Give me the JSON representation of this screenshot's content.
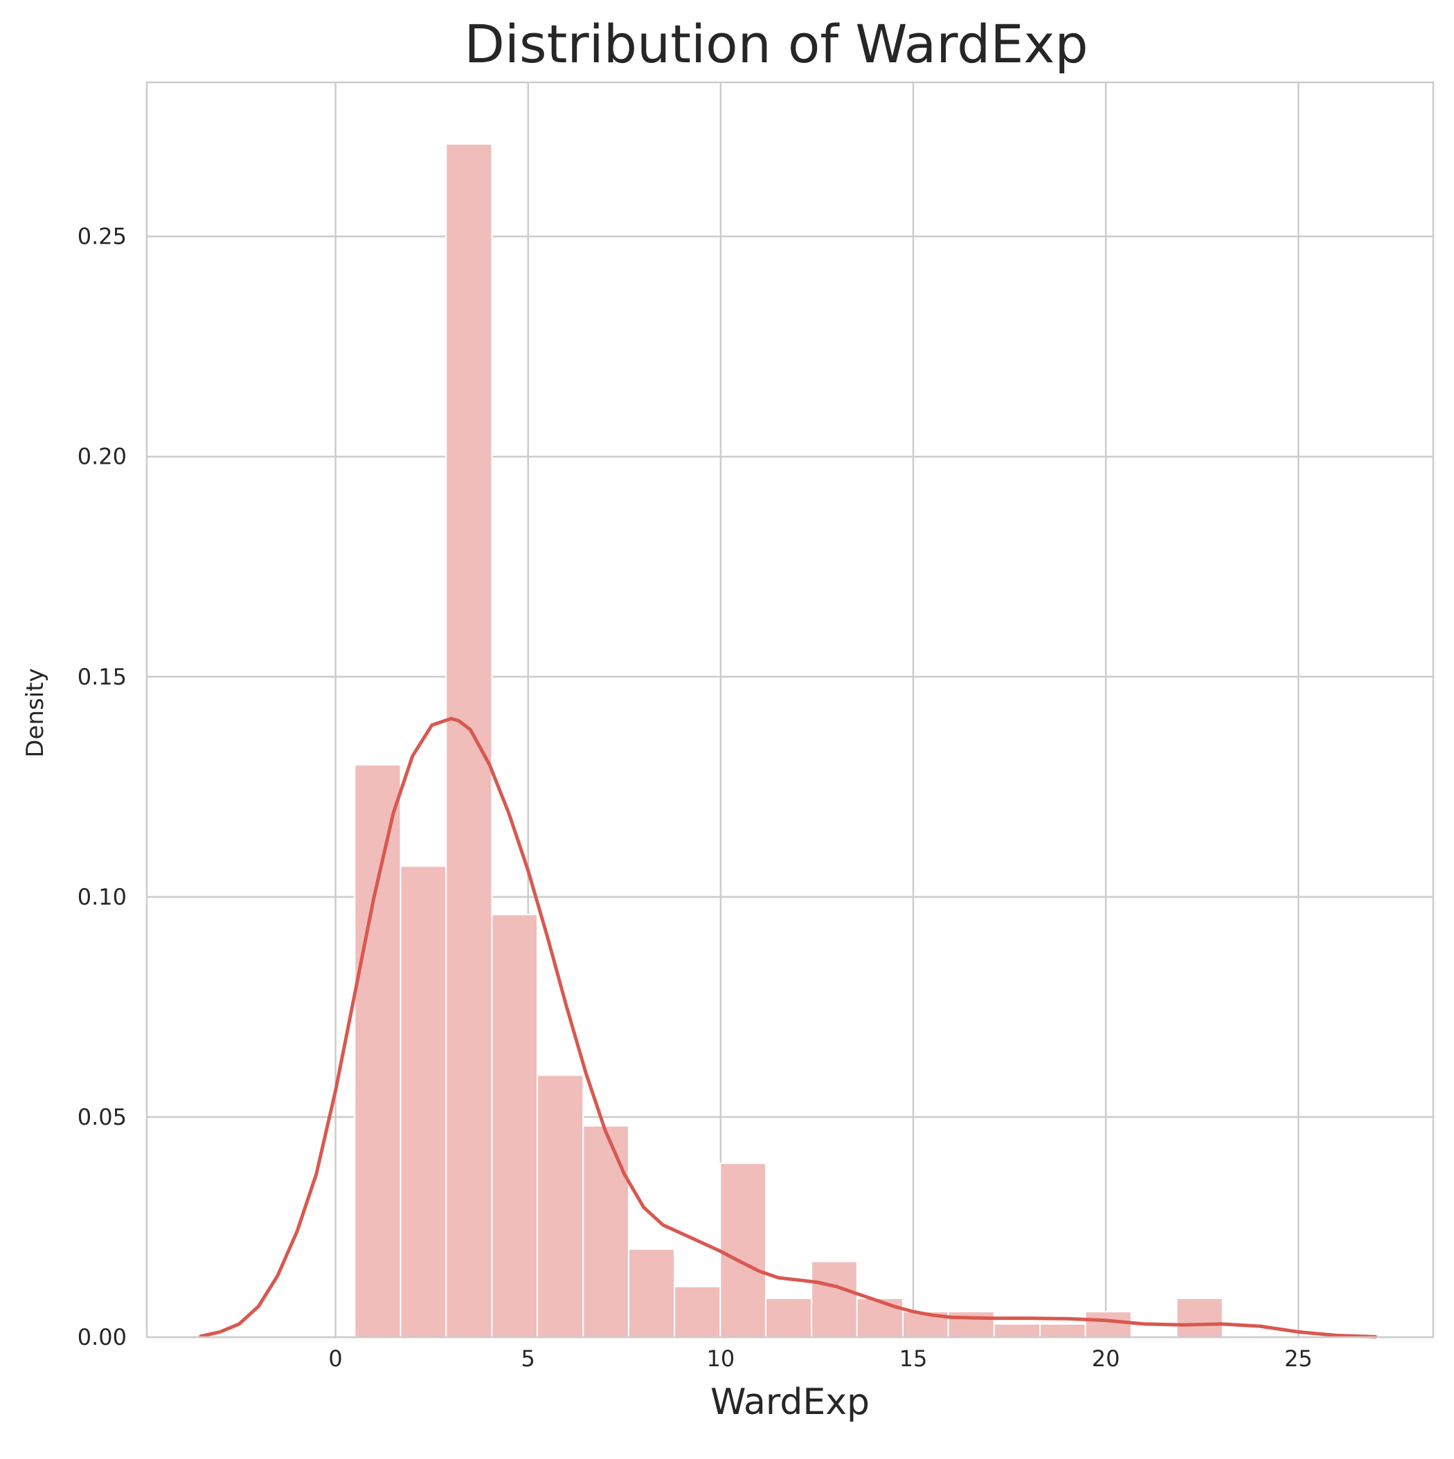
{
  "chart_data": {
    "type": "bar",
    "title": "Distribution of WardExp",
    "xlabel": "WardExp",
    "ylabel": "Density",
    "xlim": [
      -4.9,
      28.5
    ],
    "ylim": [
      0,
      0.285
    ],
    "grid": true,
    "x_ticks": [
      0,
      5,
      10,
      15,
      20,
      25
    ],
    "y_ticks": [
      0.0,
      0.05,
      0.1,
      0.15,
      0.2,
      0.25
    ],
    "x_tick_labels": [
      "0",
      "5",
      "10",
      "15",
      "20",
      "25"
    ],
    "y_tick_labels": [
      "0.00",
      "0.05",
      "0.10",
      "0.15",
      "0.20",
      "0.25"
    ],
    "bin_edges": [
      0.5,
      1.69,
      2.87,
      4.06,
      5.24,
      6.43,
      7.61,
      8.8,
      9.99,
      11.17,
      12.36,
      13.54,
      14.73,
      15.91,
      17.1,
      18.29,
      19.47,
      20.66,
      21.84,
      23.03
    ],
    "densities": [
      0.13,
      0.107,
      0.271,
      0.096,
      0.0595,
      0.048,
      0.02,
      0.0115,
      0.0395,
      0.0088,
      0.0172,
      0.0088,
      0.0058,
      0.0058,
      0.003,
      0.003,
      0.0058,
      0.0,
      0.0088
    ],
    "kde": {
      "x": [
        -3.5,
        -3,
        -2.5,
        -2,
        -1.5,
        -1,
        -0.5,
        0,
        0.5,
        1,
        1.5,
        2,
        2.5,
        3,
        3.2,
        3.5,
        4,
        4.5,
        5,
        5.5,
        6,
        6.5,
        7,
        7.5,
        8,
        8.5,
        9,
        9.5,
        10,
        10.5,
        11,
        11.5,
        12,
        12.5,
        13,
        13.5,
        14,
        14.5,
        15,
        15.5,
        16,
        17,
        18,
        19,
        20,
        21,
        22,
        23,
        24,
        25,
        26,
        27
      ],
      "y": [
        0.0002,
        0.0012,
        0.003,
        0.007,
        0.014,
        0.024,
        0.037,
        0.056,
        0.078,
        0.1,
        0.119,
        0.132,
        0.139,
        0.1405,
        0.14,
        0.138,
        0.13,
        0.119,
        0.106,
        0.091,
        0.075,
        0.06,
        0.047,
        0.037,
        0.0295,
        0.0255,
        0.0235,
        0.0215,
        0.0195,
        0.0172,
        0.015,
        0.0135,
        0.013,
        0.0125,
        0.0115,
        0.01,
        0.0085,
        0.007,
        0.0058,
        0.005,
        0.0045,
        0.0043,
        0.0043,
        0.0042,
        0.0038,
        0.003,
        0.0028,
        0.003,
        0.0025,
        0.0012,
        0.0004,
        0.0001
      ]
    },
    "colors": {
      "bar_fill": "#f0bdbb",
      "bar_edge": "#ffffff",
      "kde_line": "#d9584f",
      "grid": "#cccccc",
      "frame": "#cccccc",
      "text": "#262626"
    }
  }
}
